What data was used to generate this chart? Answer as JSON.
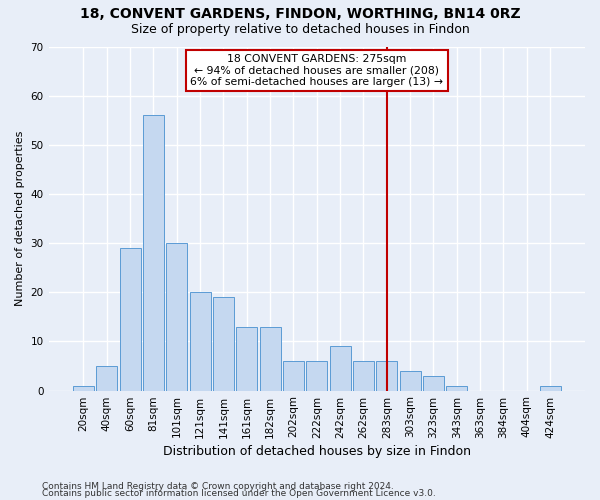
{
  "title": "18, CONVENT GARDENS, FINDON, WORTHING, BN14 0RZ",
  "subtitle": "Size of property relative to detached houses in Findon",
  "xlabel": "Distribution of detached houses by size in Findon",
  "ylabel": "Number of detached properties",
  "categories": [
    "20sqm",
    "40sqm",
    "60sqm",
    "81sqm",
    "101sqm",
    "121sqm",
    "141sqm",
    "161sqm",
    "182sqm",
    "202sqm",
    "222sqm",
    "242sqm",
    "262sqm",
    "283sqm",
    "303sqm",
    "323sqm",
    "343sqm",
    "363sqm",
    "384sqm",
    "404sqm",
    "424sqm"
  ],
  "values": [
    1,
    5,
    29,
    56,
    30,
    20,
    19,
    13,
    13,
    6,
    6,
    9,
    6,
    6,
    4,
    3,
    1,
    0,
    0,
    0,
    1
  ],
  "bar_color": "#c5d8f0",
  "bar_edge_color": "#5b9bd5",
  "vline_x_idx": 13,
  "vline_color": "#c00000",
  "annotation_title": "18 CONVENT GARDENS: 275sqm",
  "annotation_line1": "← 94% of detached houses are smaller (208)",
  "annotation_line2": "6% of semi-detached houses are larger (13) →",
  "annotation_box_edgecolor": "#c00000",
  "annotation_box_facecolor": "#ffffff",
  "footer1": "Contains HM Land Registry data © Crown copyright and database right 2024.",
  "footer2": "Contains public sector information licensed under the Open Government Licence v3.0.",
  "ylim": [
    0,
    70
  ],
  "yticks": [
    0,
    10,
    20,
    30,
    40,
    50,
    60,
    70
  ],
  "bg_color": "#e8eef8",
  "plot_bg_color": "#e8eef8",
  "grid_color": "#ffffff",
  "title_fontsize": 10,
  "subtitle_fontsize": 9,
  "ylabel_fontsize": 8,
  "xlabel_fontsize": 9,
  "tick_fontsize": 7.5,
  "footer_fontsize": 6.5
}
